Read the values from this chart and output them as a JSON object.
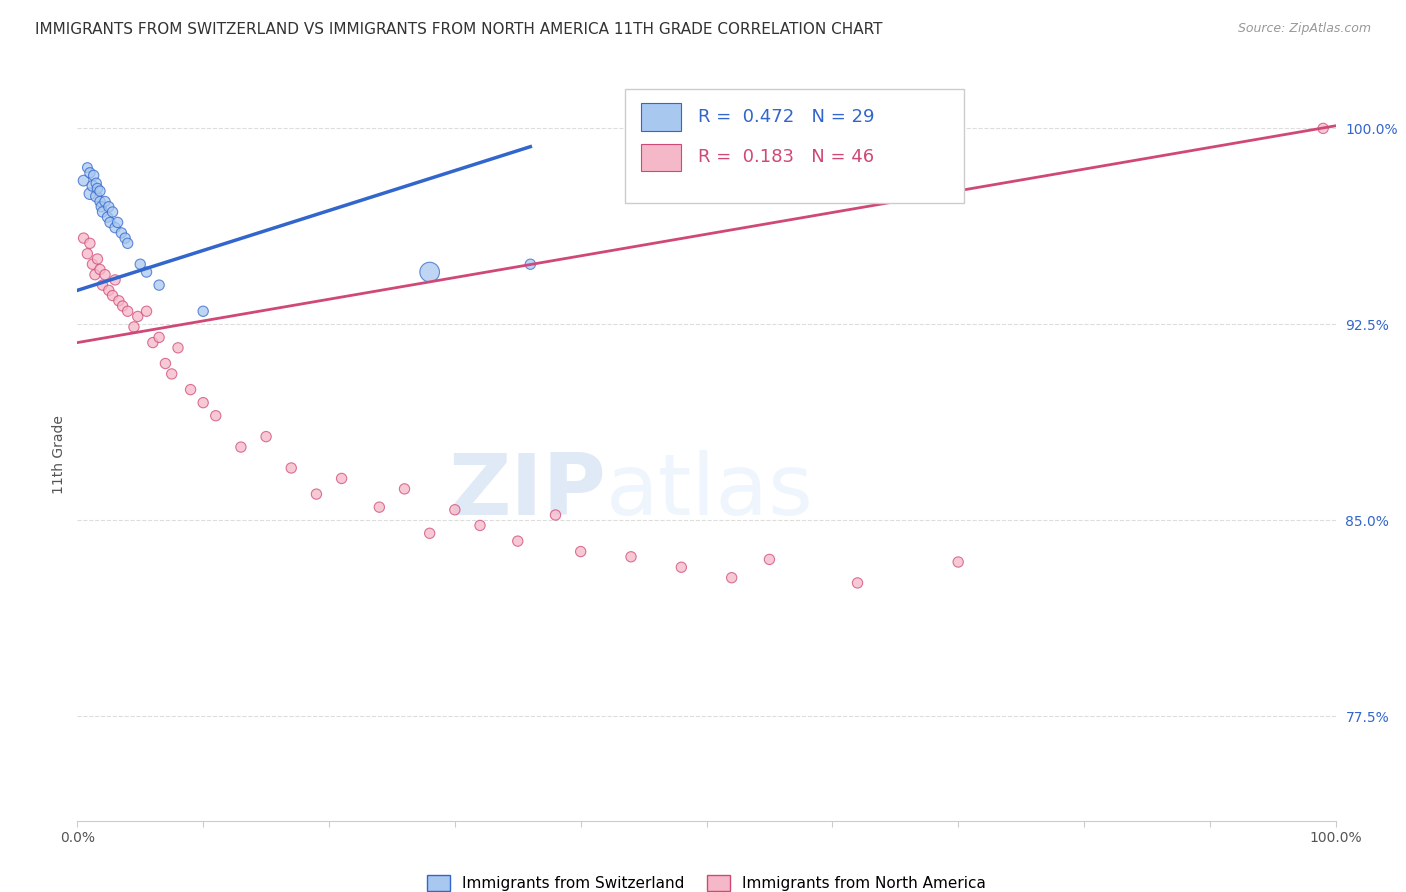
{
  "title": "IMMIGRANTS FROM SWITZERLAND VS IMMIGRANTS FROM NORTH AMERICA 11TH GRADE CORRELATION CHART",
  "source": "Source: ZipAtlas.com",
  "ylabel": "11th Grade",
  "y_axis_labels": [
    "77.5%",
    "85.0%",
    "92.5%",
    "100.0%"
  ],
  "y_axis_values": [
    0.775,
    0.85,
    0.925,
    1.0
  ],
  "xlim": [
    0.0,
    1.0
  ],
  "ylim": [
    0.735,
    1.015
  ],
  "legend_blue_r": "0.472",
  "legend_blue_n": "29",
  "legend_pink_r": "0.183",
  "legend_pink_n": "46",
  "blue_color": "#A8C8F0",
  "pink_color": "#F5B8C8",
  "blue_line_color": "#3366CC",
  "pink_line_color": "#D04878",
  "watermark_zip": "ZIP",
  "watermark_atlas": "atlas",
  "blue_scatter_x": [
    0.005,
    0.008,
    0.01,
    0.01,
    0.012,
    0.013,
    0.015,
    0.015,
    0.016,
    0.018,
    0.018,
    0.019,
    0.02,
    0.022,
    0.024,
    0.025,
    0.026,
    0.028,
    0.03,
    0.032,
    0.035,
    0.038,
    0.04,
    0.05,
    0.055,
    0.065,
    0.1,
    0.28,
    0.36
  ],
  "blue_scatter_y": [
    0.98,
    0.985,
    0.975,
    0.983,
    0.978,
    0.982,
    0.974,
    0.979,
    0.977,
    0.972,
    0.976,
    0.97,
    0.968,
    0.972,
    0.966,
    0.97,
    0.964,
    0.968,
    0.962,
    0.964,
    0.96,
    0.958,
    0.956,
    0.948,
    0.945,
    0.94,
    0.93,
    0.945,
    0.948
  ],
  "blue_scatter_size": [
    60,
    50,
    70,
    55,
    60,
    55,
    65,
    55,
    55,
    55,
    55,
    55,
    55,
    55,
    55,
    55,
    55,
    55,
    55,
    55,
    55,
    55,
    55,
    55,
    55,
    55,
    55,
    200,
    55
  ],
  "pink_scatter_x": [
    0.005,
    0.008,
    0.01,
    0.012,
    0.014,
    0.016,
    0.018,
    0.02,
    0.022,
    0.025,
    0.028,
    0.03,
    0.033,
    0.036,
    0.04,
    0.045,
    0.048,
    0.055,
    0.06,
    0.065,
    0.07,
    0.075,
    0.08,
    0.09,
    0.1,
    0.11,
    0.13,
    0.15,
    0.17,
    0.19,
    0.21,
    0.24,
    0.26,
    0.28,
    0.3,
    0.32,
    0.35,
    0.38,
    0.4,
    0.44,
    0.48,
    0.52,
    0.55,
    0.62,
    0.7,
    0.99
  ],
  "pink_scatter_y": [
    0.958,
    0.952,
    0.956,
    0.948,
    0.944,
    0.95,
    0.946,
    0.94,
    0.944,
    0.938,
    0.936,
    0.942,
    0.934,
    0.932,
    0.93,
    0.924,
    0.928,
    0.93,
    0.918,
    0.92,
    0.91,
    0.906,
    0.916,
    0.9,
    0.895,
    0.89,
    0.878,
    0.882,
    0.87,
    0.86,
    0.866,
    0.855,
    0.862,
    0.845,
    0.854,
    0.848,
    0.842,
    0.852,
    0.838,
    0.836,
    0.832,
    0.828,
    0.835,
    0.826,
    0.834,
    1.0
  ],
  "pink_scatter_size": [
    55,
    55,
    55,
    55,
    55,
    55,
    55,
    55,
    55,
    55,
    55,
    55,
    55,
    55,
    55,
    55,
    55,
    55,
    55,
    55,
    55,
    55,
    55,
    55,
    55,
    55,
    55,
    55,
    55,
    55,
    55,
    55,
    55,
    55,
    55,
    55,
    55,
    55,
    55,
    55,
    55,
    55,
    55,
    55,
    55,
    55
  ],
  "blue_trend_x": [
    0.0,
    0.36
  ],
  "blue_trend_y": [
    0.938,
    0.993
  ],
  "pink_trend_x": [
    0.0,
    1.0
  ],
  "pink_trend_y": [
    0.918,
    1.001
  ],
  "grid_color": "#DDDDDD",
  "background_color": "#FFFFFF",
  "title_fontsize": 11,
  "axis_label_fontsize": 10,
  "tick_fontsize": 10,
  "legend_fontsize": 13
}
